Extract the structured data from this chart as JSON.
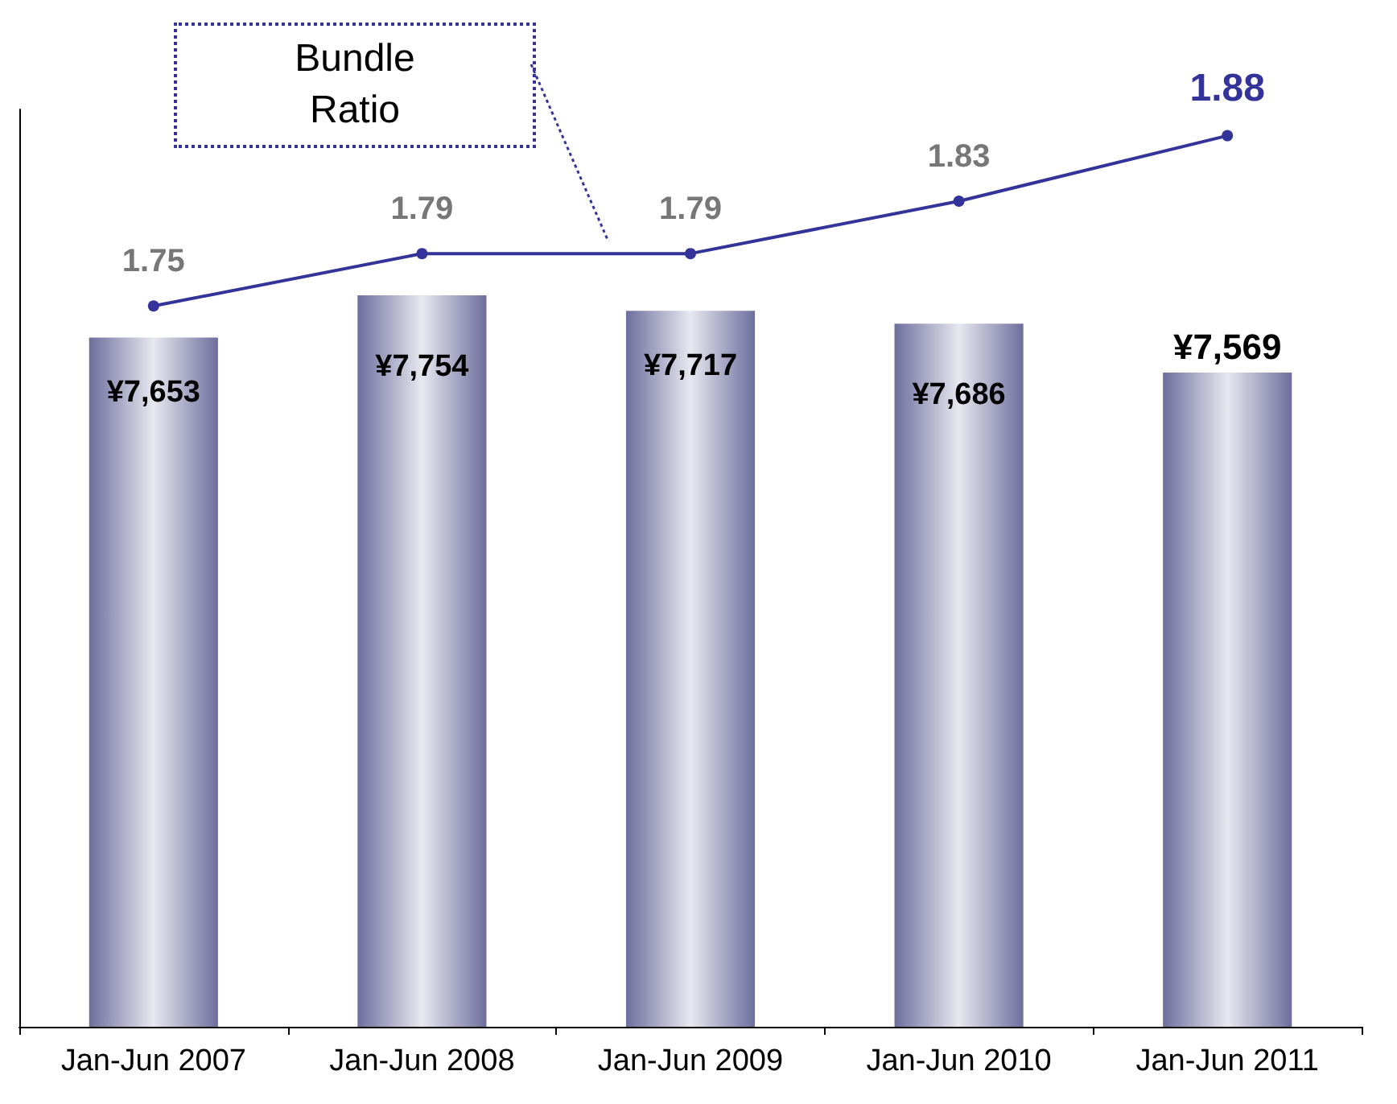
{
  "chart_data": {
    "type": "bar",
    "categories": [
      "Jan-Jun 2007",
      "Jan-Jun 2008",
      "Jan-Jun 2009",
      "Jan-Jun 2010",
      "Jan-Jun 2011"
    ],
    "series": [
      {
        "color": "#6e6e9e",
        "values": [
          7653,
          7754,
          7717,
          7686,
          7569
        ],
        "value_labels": [
          "¥7,653",
          "¥7,754",
          "¥7,717",
          "¥7,686",
          "¥7,569"
        ]
      },
      {
        "type": "line",
        "axis": "y2",
        "color": "#333399",
        "values": [
          1.75,
          1.79,
          1.79,
          1.83,
          1.88
        ],
        "value_labels": [
          "1.75",
          "1.79",
          "1.79",
          "1.83",
          "1.88"
        ]
      }
    ],
    "ylim": [
      6000,
      8200
    ],
    "y2lim": [
      1.2,
      1.9
    ],
    "marker": "circle",
    "tick_labels": "x",
    "annotations": [
      "Bundle Ratio"
    ]
  }
}
